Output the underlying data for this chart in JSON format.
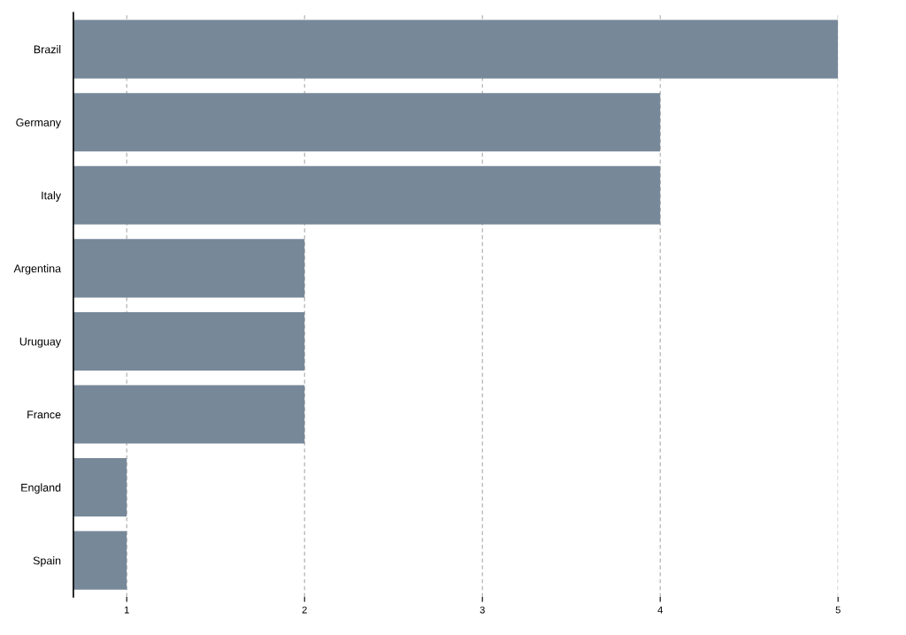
{
  "chart_data": {
    "type": "bar",
    "orientation": "horizontal",
    "categories": [
      "Brazil",
      "Germany",
      "Italy",
      "Argentina",
      "Uruguay",
      "France",
      "England",
      "Spain"
    ],
    "values": [
      5,
      4,
      4,
      2,
      2,
      2,
      1,
      1
    ],
    "color": "#778899",
    "xlim": [
      0.7,
      5
    ],
    "xticks": [
      1,
      2,
      3,
      4,
      5
    ],
    "grid": "x",
    "legend": false
  }
}
